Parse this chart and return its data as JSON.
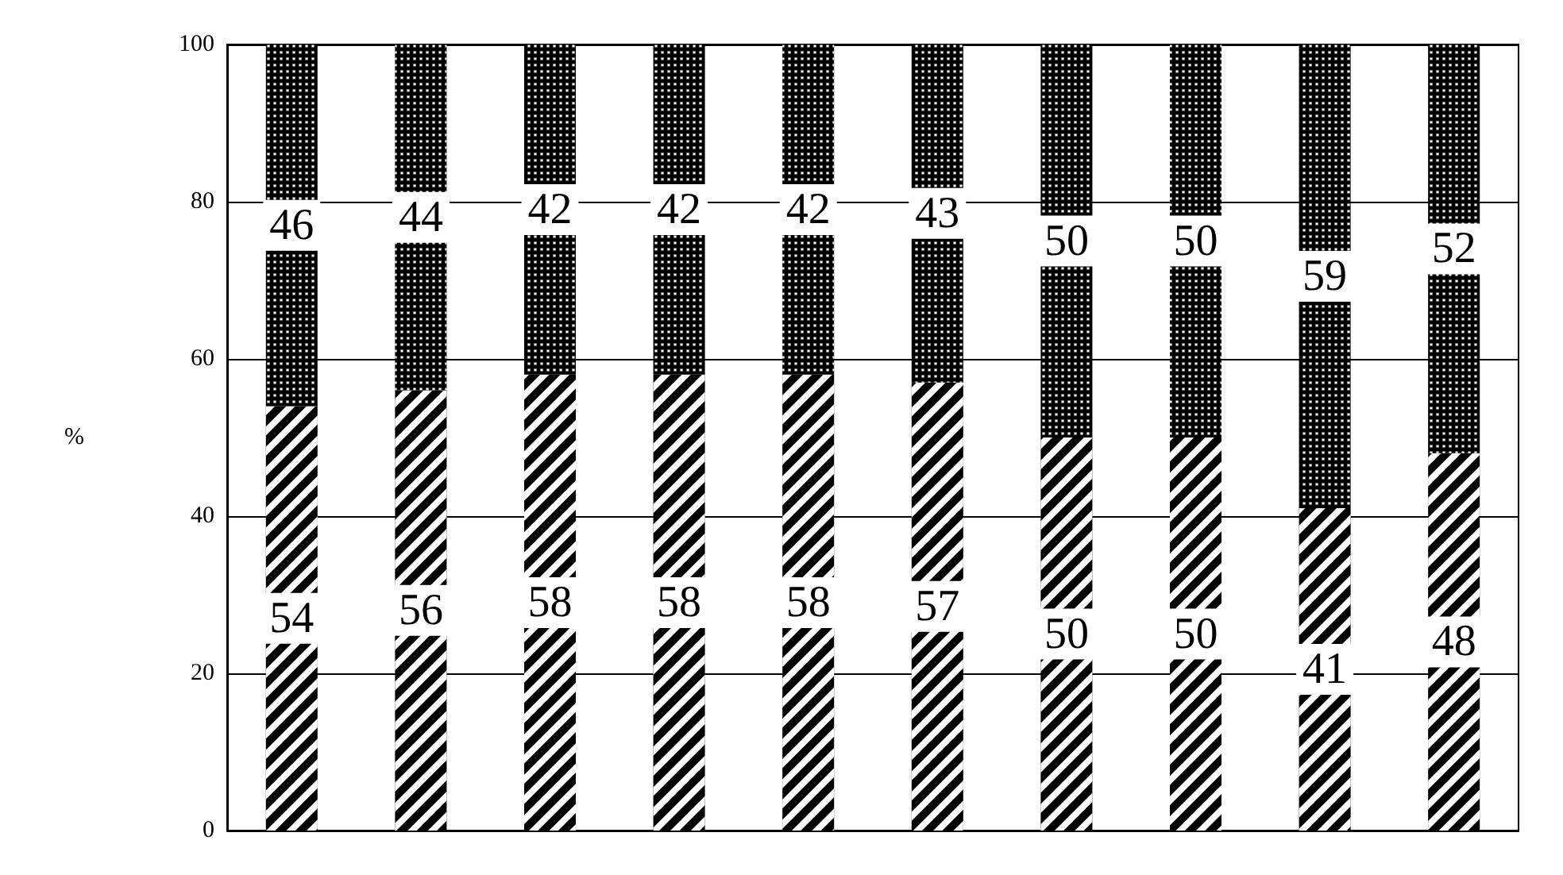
{
  "chart_data": {
    "type": "bar",
    "stacked": true,
    "ylabel": "%",
    "categories": [
      null,
      null,
      null,
      null,
      null,
      null,
      null,
      null,
      null,
      null
    ],
    "series": [
      {
        "color": "#000000",
        "values": [
          54,
          56,
          58,
          58,
          58,
          57,
          50,
          50,
          41,
          48
        ]
      },
      {
        "color": "#000000",
        "values": [
          46,
          44,
          42,
          42,
          42,
          43,
          50,
          50,
          59,
          52
        ]
      }
    ],
    "ylim": [
      0,
      100
    ],
    "yticks": [
      0,
      20,
      40,
      60,
      80,
      100
    ],
    "grid": "y",
    "data_labels": true
  }
}
